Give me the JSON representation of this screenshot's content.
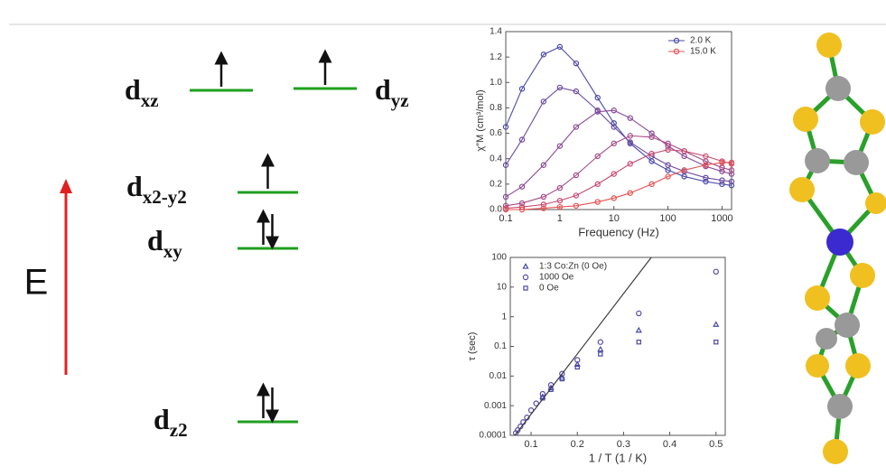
{
  "diagram": {
    "axis_label": "E",
    "levels": [
      {
        "label": "d",
        "subscript": "xz",
        "electrons": 1
      },
      {
        "label": "d",
        "subscript": "yz",
        "electrons": 1
      },
      {
        "label": "d",
        "subscript": "x2-y2",
        "electrons": 1
      },
      {
        "label": "d",
        "subscript": "xy",
        "electrons": 2
      },
      {
        "label": "d",
        "subscript": "z2",
        "electrons": 2
      }
    ]
  },
  "chart_data": [
    {
      "type": "line",
      "xlabel": "Frequency (Hz)",
      "ylabel": "χ″M (cm³/mol)",
      "xscale": "log",
      "xlim": [
        0.1,
        1500
      ],
      "xticks": [
        0.1,
        1,
        10,
        100,
        1000
      ],
      "ylim": [
        0,
        1.4
      ],
      "yticks": [
        {
          "value": 0,
          "label": "0.0"
        },
        0.2,
        0.4,
        0.6,
        0.8,
        {
          "value": 1,
          "label": "1.0"
        },
        1.2,
        1.4
      ],
      "legend": "top-right",
      "x": [
        0.1,
        0.2,
        0.5,
        1,
        2,
        5,
        10,
        20,
        50,
        100,
        200,
        500,
        1000,
        1500
      ],
      "series": [
        {
          "name": "2.0 K",
          "color": "#4a4aa8",
          "values": [
            0.65,
            0.95,
            1.22,
            1.28,
            1.15,
            0.88,
            0.68,
            0.52,
            0.38,
            0.31,
            0.26,
            0.22,
            0.2,
            0.19
          ]
        },
        {
          "color": "#6a4aa0",
          "values": [
            0.35,
            0.55,
            0.85,
            0.96,
            0.93,
            0.78,
            0.65,
            0.53,
            0.42,
            0.35,
            0.3,
            0.25,
            0.23,
            0.22
          ]
        },
        {
          "color": "#8a4a98",
          "values": [
            0.1,
            0.18,
            0.35,
            0.5,
            0.65,
            0.77,
            0.78,
            0.72,
            0.6,
            0.5,
            0.42,
            0.34,
            0.3,
            0.28
          ]
        },
        {
          "color": "#a84a88",
          "values": [
            0.03,
            0.05,
            0.1,
            0.17,
            0.27,
            0.42,
            0.52,
            0.58,
            0.57,
            0.52,
            0.46,
            0.38,
            0.33,
            0.31
          ]
        },
        {
          "color": "#c84a70",
          "values": [
            0.01,
            0.02,
            0.04,
            0.07,
            0.11,
            0.2,
            0.28,
            0.36,
            0.44,
            0.47,
            0.46,
            0.42,
            0.38,
            0.36
          ]
        },
        {
          "name": "15.0 K",
          "color": "#e85050",
          "values": [
            0,
            0,
            0.01,
            0.02,
            0.03,
            0.06,
            0.09,
            0.13,
            0.2,
            0.26,
            0.31,
            0.35,
            0.37,
            0.37
          ]
        }
      ]
    },
    {
      "type": "scatter",
      "xlabel": "1 / T (1 / K)",
      "ylabel": "τ (sec)",
      "yscale": "log",
      "xlim": [
        0.055,
        0.52
      ],
      "xticks": [
        0.1,
        0.2,
        0.3,
        0.4,
        0.5
      ],
      "ylim": [
        0.0001,
        100
      ],
      "yticks": [
        0.0001,
        0.001,
        0.01,
        0.1,
        1,
        10,
        100
      ],
      "legend": "top-left",
      "series": [
        {
          "name": "1:3 Co:Zn (0 Oe)",
          "color": "#4a4aa8",
          "marker": "triangle",
          "x": [
            0.5,
            0.333,
            0.25,
            0.2,
            0.167,
            0.143,
            0.125
          ],
          "values": [
            0.55,
            0.35,
            0.08,
            0.025,
            0.009,
            0.004,
            0.002
          ]
        },
        {
          "name": "1000 Oe",
          "color": "#5a4aa8",
          "marker": "circle",
          "x": [
            0.5,
            0.333,
            0.25,
            0.2,
            0.167,
            0.143,
            0.125,
            0.111,
            0.1,
            0.091,
            0.083,
            0.077,
            0.071,
            0.067
          ],
          "values": [
            33,
            1.3,
            0.14,
            0.035,
            0.012,
            0.005,
            0.0025,
            0.0012,
            0.0007,
            0.0004,
            0.00028,
            0.0002,
            0.00015,
            0.00012
          ]
        },
        {
          "name": "0 Oe",
          "color": "#4a4aa8",
          "marker": "square",
          "x": [
            0.5,
            0.333,
            0.25,
            0.2,
            0.167,
            0.143,
            0.125
          ],
          "values": [
            0.14,
            0.14,
            0.055,
            0.02,
            0.008,
            0.0035,
            0.0018
          ]
        },
        {
          "color": "#333333",
          "marker": "line",
          "x": [
            0.065,
            0.36
          ],
          "values": [
            0.0001,
            100
          ]
        }
      ]
    }
  ]
}
